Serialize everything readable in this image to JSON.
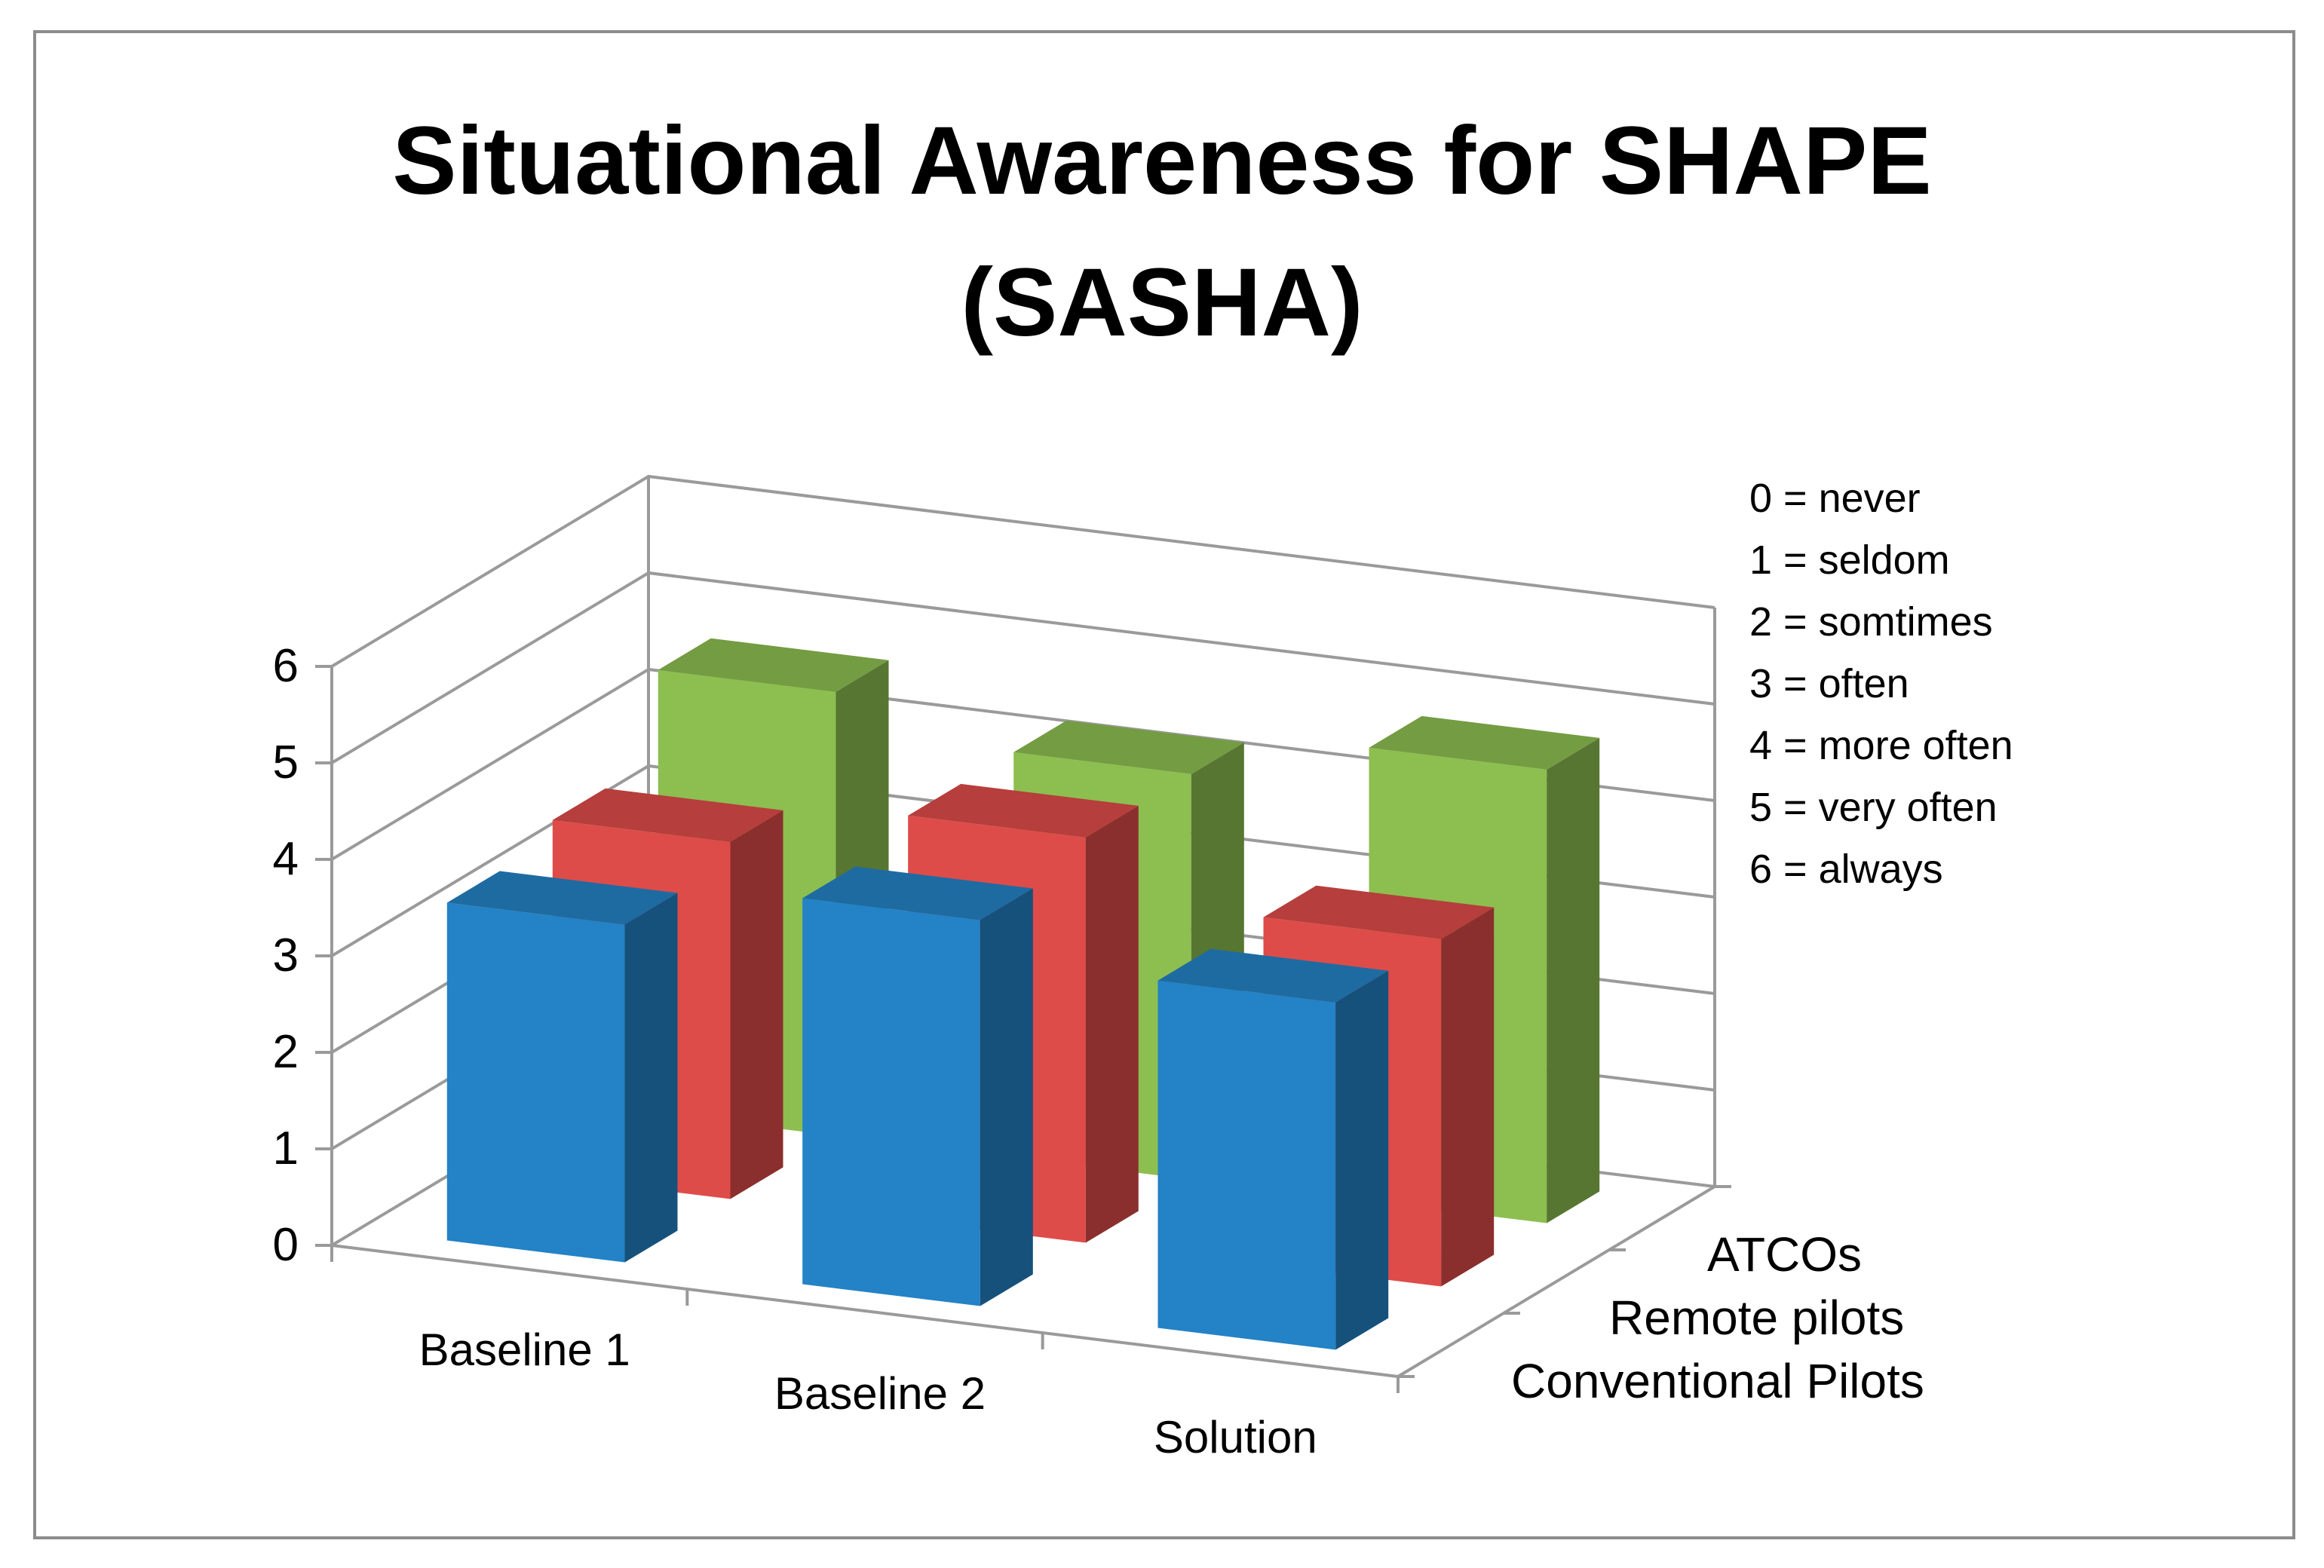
{
  "chart_data": {
    "type": "bar",
    "title": "Situational Awareness for SHAPE (SASHA)",
    "title_lines": [
      "Situational Awareness for SHAPE",
      "(SASHA)"
    ],
    "categories": [
      "Baseline 1",
      "Baseline 2",
      "Solution"
    ],
    "series": [
      {
        "name": "Conventional Pilots",
        "values": [
          3.5,
          4.0,
          3.6
        ],
        "color": "#2482C6"
      },
      {
        "name": "Remote pilots",
        "values": [
          3.7,
          4.2,
          3.6
        ],
        "color": "#DE4C49"
      },
      {
        "name": "ATCOs",
        "values": [
          4.6,
          4.2,
          4.7
        ],
        "color": "#8DBE50"
      }
    ],
    "ylim": [
      0,
      6
    ],
    "yticks": [
      "0",
      "1",
      "2",
      "3",
      "4",
      "5",
      "6"
    ],
    "grid": true,
    "scale_legend": [
      "0 = never",
      "1 = seldom",
      "2 = somtimes",
      "3 = often",
      "4 = more often",
      "5 = very often",
      "6 = always"
    ]
  }
}
